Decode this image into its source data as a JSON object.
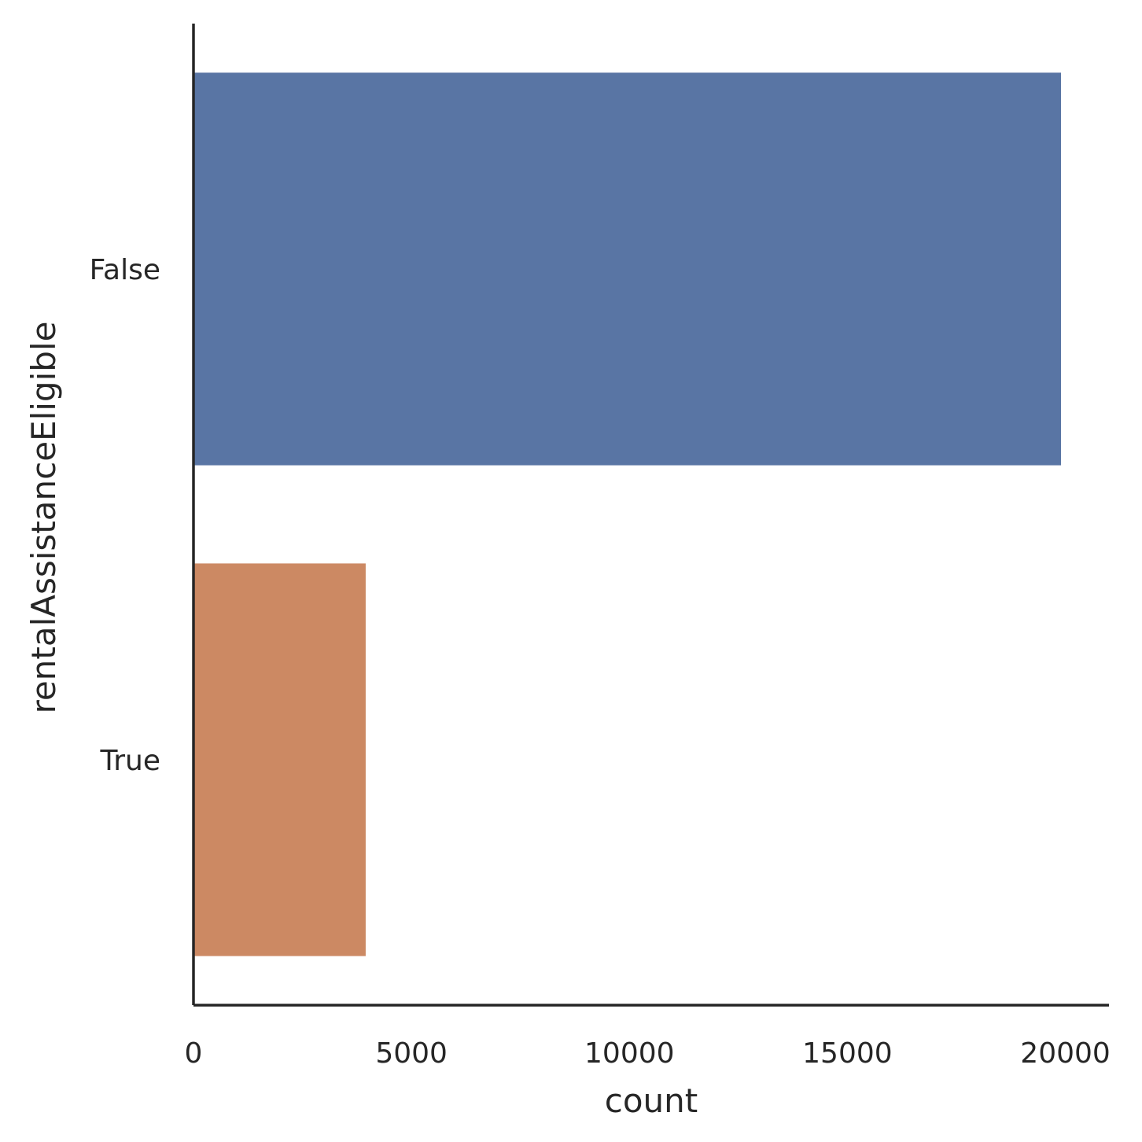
{
  "chart_data": {
    "type": "bar",
    "orientation": "horizontal",
    "categories": [
      "False",
      "True"
    ],
    "values": [
      19900,
      3950
    ],
    "title": "",
    "xlabel": "count",
    "ylabel": "rentalAssistanceEligible",
    "xlim": [
      0,
      21000
    ],
    "xticks": [
      0,
      5000,
      10000,
      15000,
      20000
    ],
    "grid": false,
    "colors": [
      "#5975a4",
      "#cc8963"
    ],
    "spine_color": "#262626"
  }
}
